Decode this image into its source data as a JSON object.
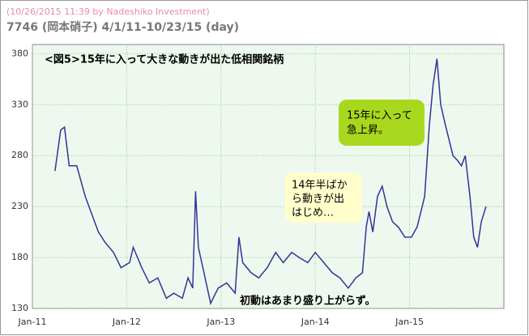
{
  "chart_data": {
    "type": "line",
    "subtitle": "(10/26/2015 11:39 by Nadeshiko Investment)",
    "title": "7746 (岡本硝子)  4/1/11-10/23/15 (day)",
    "annotations": {
      "headline": "<図5>15年に入って大きな動きが出た低相関銘柄",
      "green_box": [
        "15年に入って",
        "急上昇。"
      ],
      "yellow_box": [
        "14年半ばか",
        "ら動きが出",
        "はじめ…"
      ],
      "bottom_note": "初動はあまり盛り上がらず。"
    },
    "xlim": [
      2011,
      2016
    ],
    "xticks": [
      {
        "value": 2011,
        "label": "Jan-11"
      },
      {
        "value": 2012,
        "label": "Jan-12"
      },
      {
        "value": 2013,
        "label": "Jan-13"
      },
      {
        "value": 2014,
        "label": "Jan-14"
      },
      {
        "value": 2015,
        "label": "Jan-15"
      }
    ],
    "ylim": [
      130,
      389
    ],
    "yticks": [
      130,
      180,
      230,
      280,
      330,
      380
    ],
    "grid": true,
    "series": [
      {
        "name": "7746",
        "color": "#333399",
        "x": [
          2011.24,
          2011.3,
          2011.34,
          2011.39,
          2011.47,
          2011.56,
          2011.64,
          2011.7,
          2011.77,
          2011.86,
          2011.94,
          2012.03,
          2012.07,
          2012.16,
          2012.24,
          2012.33,
          2012.42,
          2012.5,
          2012.59,
          2012.65,
          2012.7,
          2012.73,
          2012.76,
          2012.82,
          2012.89,
          2012.97,
          2013.06,
          2013.15,
          2013.19,
          2013.23,
          2013.32,
          2013.4,
          2013.49,
          2013.58,
          2013.66,
          2013.75,
          2013.83,
          2013.92,
          2014.0,
          2014.09,
          2014.18,
          2014.26,
          2014.35,
          2014.43,
          2014.5,
          2014.54,
          2014.57,
          2014.61,
          2014.66,
          2014.71,
          2014.76,
          2014.82,
          2014.88,
          2014.95,
          2015.02,
          2015.08,
          2015.12,
          2015.16,
          2015.21,
          2015.25,
          2015.29,
          2015.33,
          2015.38,
          2015.42,
          2015.46,
          2015.51,
          2015.55,
          2015.59,
          2015.64,
          2015.68,
          2015.72,
          2015.76,
          2015.81
        ],
        "values": [
          265,
          305,
          308,
          270,
          270,
          240,
          220,
          205,
          195,
          185,
          170,
          175,
          190,
          170,
          155,
          160,
          140,
          145,
          140,
          160,
          150,
          245,
          190,
          165,
          135,
          150,
          155,
          145,
          200,
          175,
          165,
          160,
          170,
          185,
          175,
          185,
          180,
          175,
          185,
          175,
          165,
          160,
          150,
          160,
          165,
          210,
          225,
          205,
          240,
          250,
          230,
          215,
          210,
          200,
          200,
          210,
          225,
          240,
          310,
          350,
          375,
          330,
          310,
          295,
          280,
          275,
          270,
          280,
          240,
          200,
          190,
          215,
          230
        ]
      }
    ]
  }
}
